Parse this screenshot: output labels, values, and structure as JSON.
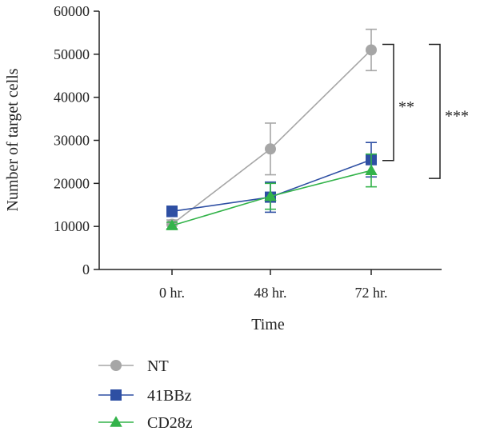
{
  "chart_data": {
    "type": "line",
    "title": "",
    "xlabel": "Time",
    "ylabel": "Number of target cells",
    "categories": [
      "0 hr.",
      "48 hr.",
      "72 hr."
    ],
    "ylim": [
      0,
      60000
    ],
    "yticks": [
      0,
      10000,
      20000,
      30000,
      40000,
      50000,
      60000
    ],
    "yticklabels": [
      "0",
      "10000",
      "20000",
      "30000",
      "40000",
      "50000",
      "60000"
    ],
    "grid": false,
    "legend_position": "bottom-left",
    "series": [
      {
        "name": "NT",
        "marker": "circle",
        "color": "#a6a6a6",
        "values": [
          10500,
          28000,
          51000
        ],
        "error": [
          1000,
          6000,
          4800
        ]
      },
      {
        "name": "41BBz",
        "marker": "square",
        "color": "#2e4fa3",
        "values": [
          13500,
          16800,
          25500
        ],
        "error": [
          1200,
          3500,
          4000
        ]
      },
      {
        "name": "CD28z",
        "marker": "triangle",
        "color": "#33b34a",
        "values": [
          10200,
          17000,
          23000
        ],
        "error": [
          800,
          3000,
          3800
        ]
      }
    ],
    "annotations": [
      {
        "label": "**",
        "top": 51000,
        "bottom": 25500
      },
      {
        "label": "***",
        "top": 51000,
        "bottom": 23000
      }
    ]
  }
}
